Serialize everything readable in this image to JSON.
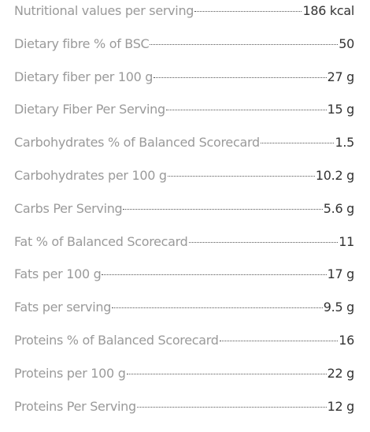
{
  "rows": [
    {
      "label": "Nutritional values per serving",
      "value": "186 kcal"
    },
    {
      "label": "Dietary fibre % of BSC",
      "value": "50"
    },
    {
      "label": "Dietary fiber per 100 g",
      "value": "27 g"
    },
    {
      "label": "Dietary Fiber Per Serving",
      "value": "15 g"
    },
    {
      "label": "Carbohydrates % of Balanced Scorecard",
      "value": "1.5"
    },
    {
      "label": "Carbohydrates per 100 g",
      "value": "10.2 g"
    },
    {
      "label": "Carbs Per Serving",
      "value": "5.6 g"
    },
    {
      "label": "Fat % of Balanced Scorecard",
      "value": "11"
    },
    {
      "label": "Fats per 100 g",
      "value": "17 g"
    },
    {
      "label": "Fats per serving",
      "value": "9.5 g"
    },
    {
      "label": "Proteins % of Balanced Scorecard",
      "value": "16"
    },
    {
      "label": "Proteins per 100 g",
      "value": "22 g"
    },
    {
      "label": "Proteins Per Serving",
      "value": "12 g"
    }
  ]
}
